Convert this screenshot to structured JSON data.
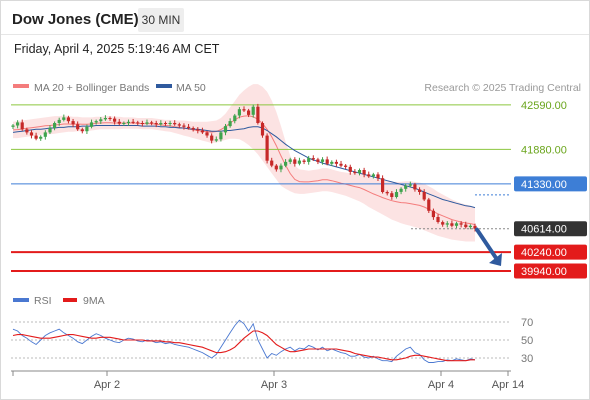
{
  "header": {
    "title": "Dow Jones (CME)",
    "interval": "30 MIN",
    "timestamp": "Friday, April 4, 2025 5:19:46 AM CET"
  },
  "colors": {
    "bollinger": "#f47c7c",
    "bollinger_fill": "#fbdede",
    "ma50": "#2f5a9e",
    "resistance": "#8cc63f",
    "pivot": "#3d7ed6",
    "support": "#e31b1b",
    "current": "#333333",
    "candle_up": "#3fa34d",
    "candle_down": "#c62828",
    "rsi": "#4a78d1",
    "rsi_ma": "#e31b1b",
    "arrow": "#2f5a9e"
  },
  "chart_data": [
    {
      "type": "candlestick",
      "title": "",
      "legend": {
        "position": "top-left",
        "entries": [
          {
            "label": "MA 20 + Bollinger Bands",
            "color": "#f47c7c"
          },
          {
            "label": "MA 50",
            "color": "#2f5a9e"
          }
        ]
      },
      "credit": "Research © 2025 Trading Central",
      "ylim": [
        39700,
        43050
      ],
      "x_ticks": [
        "Apr 2",
        "Apr 3",
        "Apr 4",
        "Apr 14"
      ],
      "levels": [
        {
          "label": "42590.00",
          "value": 42590,
          "kind": "resistance"
        },
        {
          "label": "41880.00",
          "value": 41880,
          "kind": "resistance"
        },
        {
          "label": "41330.00",
          "value": 41330,
          "kind": "pivot"
        },
        {
          "label": "40614.00",
          "value": 40614,
          "kind": "current"
        },
        {
          "label": "40240.00",
          "value": 40240,
          "kind": "support"
        },
        {
          "label": "39940.00",
          "value": 39940,
          "kind": "support"
        }
      ],
      "forecast_arrow": {
        "from": 40600,
        "to": 40020
      },
      "close_series": [
        42260,
        42310,
        42200,
        42150,
        42100,
        42050,
        42080,
        42150,
        42220,
        42300,
        42350,
        42390,
        42330,
        42280,
        42200,
        42170,
        42240,
        42310,
        42330,
        42360,
        42380,
        42370,
        42320,
        42290,
        42300,
        42320,
        42310,
        42300,
        42290,
        42310,
        42300,
        42280,
        42300,
        42290,
        42300,
        42280,
        42260,
        42240,
        42220,
        42200,
        42180,
        42150,
        42100,
        42020,
        42040,
        42150,
        42250,
        42330,
        42420,
        42520,
        42500,
        42430,
        42560,
        42300,
        42100,
        41700,
        41620,
        41560,
        41620,
        41680,
        41720,
        41650,
        41700,
        41680,
        41740,
        41720,
        41680,
        41720,
        41650,
        41680,
        41650,
        41620,
        41600,
        41520,
        41500,
        41550,
        41480,
        41450,
        41480,
        41420,
        41200,
        41180,
        41120,
        41200,
        41250,
        41300,
        41320,
        41240,
        41200,
        41080,
        40900,
        40800,
        40720,
        40680,
        40700,
        40660,
        40700,
        40680,
        40640,
        40660,
        40614
      ],
      "bb_upper": [
        42320,
        42330,
        42340,
        42350,
        42360,
        42370,
        42380,
        42390,
        42400,
        42410,
        42410,
        42420,
        42410,
        42400,
        42400,
        42390,
        42390,
        42390,
        42400,
        42400,
        42410,
        42410,
        42400,
        42400,
        42390,
        42390,
        42390,
        42380,
        42380,
        42380,
        42380,
        42370,
        42360,
        42350,
        42350,
        42340,
        42340,
        42340,
        42330,
        42320,
        42320,
        42320,
        42320,
        42330,
        42340,
        42380,
        42450,
        42550,
        42650,
        42750,
        42820,
        42880,
        42920,
        42920,
        42880,
        42800,
        42660,
        42480,
        42250,
        42000,
        41780,
        41620,
        41560,
        41550,
        41540,
        41550,
        41560,
        41580,
        41580,
        41560,
        41540,
        41520,
        41510,
        41500,
        41490,
        41490,
        41470,
        41450,
        41420,
        41400,
        41380,
        41370,
        41360,
        41360,
        41360,
        41370,
        41370,
        41360,
        41350,
        41330,
        41290,
        41250,
        41200,
        41160,
        41120,
        41080,
        41050,
        41020,
        41000,
        40980,
        40950
      ],
      "bb_lower": [
        42060,
        42060,
        42070,
        42080,
        42090,
        42100,
        42110,
        42120,
        42120,
        42130,
        42140,
        42150,
        42160,
        42160,
        42170,
        42170,
        42170,
        42180,
        42190,
        42200,
        42200,
        42200,
        42200,
        42200,
        42210,
        42210,
        42210,
        42210,
        42200,
        42200,
        42200,
        42190,
        42180,
        42170,
        42160,
        42140,
        42120,
        42100,
        42080,
        42060,
        42040,
        42020,
        42000,
        41980,
        41990,
        42010,
        42030,
        42050,
        42050,
        42040,
        42000,
        41950,
        41880,
        41800,
        41700,
        41600,
        41500,
        41400,
        41300,
        41250,
        41210,
        41180,
        41170,
        41170,
        41180,
        41190,
        41200,
        41210,
        41210,
        41200,
        41180,
        41160,
        41140,
        41110,
        41080,
        41050,
        41010,
        40960,
        40920,
        40880,
        40840,
        40800,
        40760,
        40730,
        40700,
        40680,
        40660,
        40640,
        40620,
        40590,
        40560,
        40530,
        40500,
        40480,
        40460,
        40440,
        40430,
        40420,
        40410,
        40410,
        40410
      ],
      "ma50": [
        42150,
        42160,
        42170,
        42180,
        42190,
        42200,
        42200,
        42210,
        42220,
        42220,
        42230,
        42230,
        42240,
        42240,
        42240,
        42250,
        42250,
        42250,
        42260,
        42260,
        42260,
        42260,
        42260,
        42260,
        42260,
        42260,
        42260,
        42260,
        42250,
        42250,
        42250,
        42250,
        42240,
        42240,
        42230,
        42230,
        42220,
        42220,
        42210,
        42200,
        42200,
        42190,
        42180,
        42170,
        42170,
        42170,
        42180,
        42180,
        42190,
        42200,
        42210,
        42230,
        42240,
        42240,
        42220,
        42180,
        42130,
        42080,
        42020,
        41960,
        41910,
        41860,
        41820,
        41780,
        41740,
        41710,
        41690,
        41660,
        41640,
        41620,
        41600,
        41580,
        41560,
        41540,
        41520,
        41500,
        41480,
        41460,
        41440,
        41420,
        41400,
        41380,
        41360,
        41340,
        41320,
        41300,
        41280,
        41260,
        41230,
        41200,
        41170,
        41140,
        41110,
        41080,
        41060,
        41040,
        41020,
        41000,
        40980,
        40970,
        40950
      ]
    },
    {
      "type": "line",
      "title": "",
      "legend": {
        "position": "top-left",
        "entries": [
          {
            "label": "RSI",
            "color": "#4a78d1"
          },
          {
            "label": "9MA",
            "color": "#e31b1b"
          }
        ]
      },
      "ylim": [
        20,
        80
      ],
      "y_ticks": [
        "70",
        "50",
        "30"
      ],
      "series": [
        {
          "name": "RSI",
          "values": [
            62,
            60,
            55,
            52,
            48,
            45,
            50,
            55,
            58,
            60,
            62,
            58,
            55,
            52,
            48,
            46,
            50,
            54,
            57,
            55,
            52,
            50,
            48,
            47,
            50,
            52,
            51,
            49,
            48,
            50,
            49,
            47,
            48,
            46,
            47,
            45,
            44,
            43,
            42,
            40,
            38,
            36,
            33,
            30,
            34,
            42,
            50,
            58,
            66,
            72,
            68,
            60,
            68,
            50,
            40,
            30,
            35,
            33,
            37,
            40,
            42,
            38,
            41,
            40,
            44,
            42,
            39,
            42,
            38,
            40,
            38,
            36,
            35,
            32,
            32,
            34,
            31,
            30,
            32,
            29,
            27,
            27,
            26,
            32,
            36,
            40,
            42,
            36,
            34,
            28,
            25,
            25,
            26,
            26,
            28,
            27,
            29,
            28,
            27,
            29,
            28
          ]
        },
        {
          "name": "9MA",
          "values": [
            55,
            56,
            56,
            55,
            54,
            53,
            52,
            52,
            52,
            53,
            54,
            55,
            56,
            56,
            55,
            54,
            53,
            52,
            52,
            53,
            53,
            53,
            52,
            51,
            50,
            50,
            50,
            50,
            50,
            49,
            49,
            49,
            49,
            48,
            48,
            47,
            47,
            46,
            45,
            44,
            43,
            42,
            40,
            38,
            36,
            36,
            37,
            39,
            42,
            47,
            52,
            56,
            60,
            60,
            58,
            55,
            50,
            45,
            42,
            39,
            37,
            37,
            38,
            39,
            40,
            40,
            40,
            40,
            40,
            40,
            40,
            39,
            38,
            37,
            35,
            34,
            33,
            32,
            31,
            31,
            30,
            29,
            28,
            28,
            29,
            30,
            32,
            33,
            33,
            32,
            31,
            30,
            29,
            28,
            27,
            27,
            27,
            27,
            27,
            28,
            28
          ]
        }
      ]
    }
  ]
}
